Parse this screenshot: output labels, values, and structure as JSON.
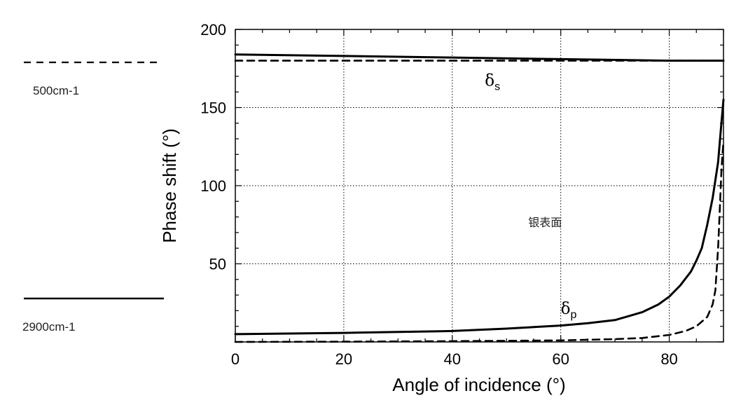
{
  "chart_data": {
    "type": "line",
    "title": "",
    "xlabel": "Angle of incidence (°)",
    "ylabel": "Phase shift (°)",
    "xlim": [
      0,
      90
    ],
    "ylim": [
      0,
      200
    ],
    "xticks": [
      0,
      20,
      40,
      60,
      80
    ],
    "yticks": [
      50,
      100,
      150,
      200
    ],
    "grid": true,
    "legend_placement": "left-outside",
    "series": [
      {
        "name": "500cm-1",
        "style": "dashed",
        "color": "#000000",
        "curves": [
          {
            "label": "δs",
            "x": [
              0,
              20,
              40,
              60,
              80,
              90
            ],
            "y": [
              180,
              180,
              180,
              180,
              180,
              180
            ]
          },
          {
            "label": "δp",
            "x": [
              0,
              20,
              40,
              60,
              70,
              75,
              80,
              83,
              85,
              87,
              88,
              88.5,
              89,
              89.2,
              89.4,
              89.6,
              89.8,
              90
            ],
            "y": [
              0,
              0.2,
              0.5,
              1,
              1.8,
              2.5,
              4.5,
              7,
              10,
              16,
              24,
              33,
              60,
              75,
              92,
              108,
              120,
              128
            ]
          }
        ]
      },
      {
        "name": "2900cm-1",
        "style": "solid",
        "color": "#000000",
        "curves": [
          {
            "label": "δs",
            "x": [
              0,
              20,
              40,
              60,
              80,
              90
            ],
            "y": [
              184,
              183,
              182,
              181,
              180,
              180
            ]
          },
          {
            "label": "δp",
            "x": [
              0,
              20,
              40,
              50,
              60,
              65,
              70,
              75,
              78,
              80,
              82,
              84,
              85,
              86,
              87,
              88,
              89,
              89.5,
              90
            ],
            "y": [
              5,
              5.8,
              7,
              8.5,
              10.5,
              12,
              14,
              19,
              24,
              29,
              36,
              45,
              52,
              60,
              75,
              92,
              115,
              135,
              155
            ]
          }
        ]
      }
    ],
    "annotations": [
      {
        "text": "δ",
        "subscript": "s",
        "x": 46,
        "y": 164
      },
      {
        "text": "δ",
        "subscript": "p",
        "x": 60,
        "y": 18
      },
      {
        "text": "银表面",
        "x": 54,
        "y": 74
      }
    ]
  }
}
